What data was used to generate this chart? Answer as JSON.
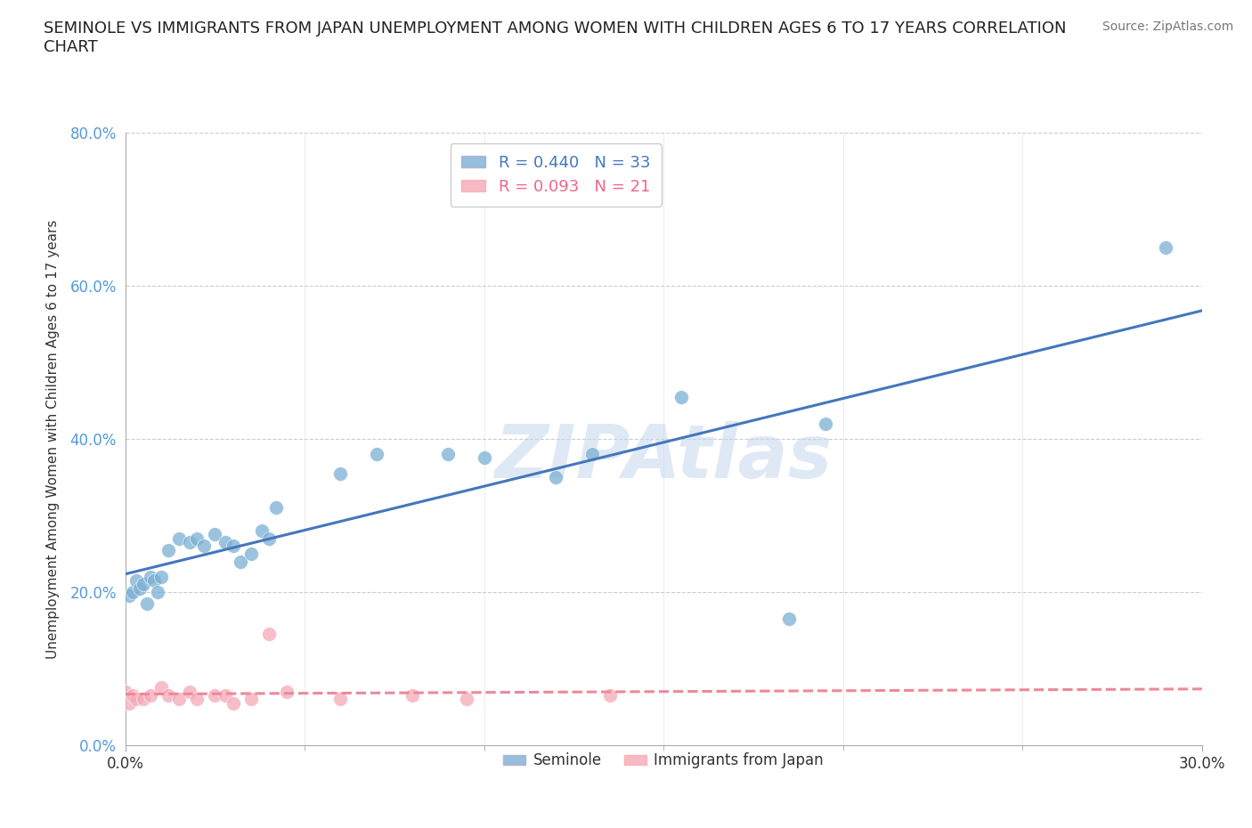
{
  "title": "SEMINOLE VS IMMIGRANTS FROM JAPAN UNEMPLOYMENT AMONG WOMEN WITH CHILDREN AGES 6 TO 17 YEARS CORRELATION\nCHART",
  "source": "Source: ZipAtlas.com",
  "ylabel": "Unemployment Among Women with Children Ages 6 to 17 years",
  "xlim": [
    0.0,
    0.3
  ],
  "ylim": [
    0.0,
    0.8
  ],
  "xtick_minor": [
    0.05,
    0.1,
    0.15,
    0.2,
    0.25
  ],
  "xtick_major": [
    0.0,
    0.3
  ],
  "xtick_major_labels": [
    "0.0%",
    "30.0%"
  ],
  "ytick_values": [
    0.0,
    0.2,
    0.4,
    0.6,
    0.8
  ],
  "ytick_labels": [
    "0.0%",
    "20.0%",
    "40.0%",
    "60.0%",
    "80.0%"
  ],
  "seminole_R": 0.44,
  "seminole_N": 33,
  "japan_R": 0.093,
  "japan_N": 21,
  "seminole_color": "#7BAFD4",
  "japan_color": "#F4A8B8",
  "seminole_line_color": "#4477BB",
  "japan_line_color": "#EE8899",
  "background_color": "#FFFFFF",
  "grid_color": "#CCCCCC",
  "watermark": "ZIPAtlas",
  "seminole_x": [
    0.001,
    0.002,
    0.003,
    0.004,
    0.005,
    0.006,
    0.007,
    0.008,
    0.009,
    0.01,
    0.012,
    0.015,
    0.018,
    0.02,
    0.022,
    0.025,
    0.028,
    0.03,
    0.032,
    0.035,
    0.038,
    0.04,
    0.042,
    0.06,
    0.07,
    0.09,
    0.1,
    0.12,
    0.13,
    0.155,
    0.185,
    0.195,
    0.29
  ],
  "seminole_y": [
    0.195,
    0.2,
    0.215,
    0.205,
    0.21,
    0.185,
    0.22,
    0.215,
    0.2,
    0.22,
    0.255,
    0.27,
    0.265,
    0.27,
    0.26,
    0.275,
    0.265,
    0.26,
    0.24,
    0.25,
    0.28,
    0.27,
    0.31,
    0.355,
    0.38,
    0.38,
    0.375,
    0.35,
    0.38,
    0.455,
    0.165,
    0.42,
    0.65
  ],
  "japan_x": [
    0.0,
    0.001,
    0.002,
    0.003,
    0.005,
    0.007,
    0.01,
    0.012,
    0.015,
    0.018,
    0.02,
    0.025,
    0.028,
    0.03,
    0.035,
    0.04,
    0.045,
    0.06,
    0.08,
    0.095,
    0.135
  ],
  "japan_y": [
    0.07,
    0.055,
    0.065,
    0.06,
    0.06,
    0.065,
    0.075,
    0.065,
    0.06,
    0.07,
    0.06,
    0.065,
    0.065,
    0.055,
    0.06,
    0.145,
    0.07,
    0.06,
    0.065,
    0.06,
    0.065
  ]
}
